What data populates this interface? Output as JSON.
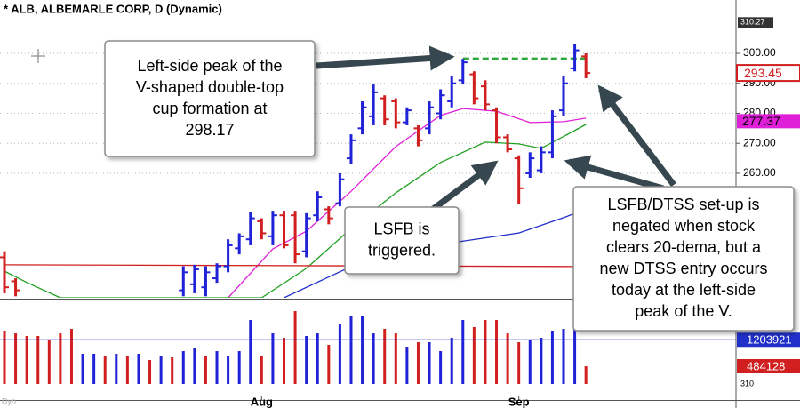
{
  "chart_data": {
    "type": "ohlc",
    "title": "* ALB, ALBEMARLE CORP, D (Dynamic)",
    "categories": [
      null,
      null,
      null,
      null,
      null,
      null,
      null,
      null,
      null,
      null,
      null,
      null,
      null,
      null,
      null,
      null,
      null,
      null,
      null,
      null,
      null,
      null,
      null,
      "Aug",
      null,
      null,
      null,
      null,
      null,
      null,
      null,
      null,
      null,
      null,
      null,
      null,
      null,
      null,
      null,
      null,
      null,
      null,
      null,
      null,
      null,
      null,
      "Sep",
      null,
      null,
      null,
      null,
      null,
      null
    ],
    "open": [
      232,
      224,
      null,
      null,
      null,
      null,
      null,
      null,
      null,
      null,
      null,
      null,
      null,
      null,
      null,
      null,
      221,
      223,
      222,
      225,
      229,
      235,
      238,
      244,
      239,
      246,
      246,
      234,
      246,
      248,
      250,
      265,
      275,
      279,
      285,
      284,
      277,
      275,
      275,
      280,
      284,
      291,
      293,
      289,
      281,
      272,
      265,
      260,
      261,
      267,
      281,
      295,
      299
    ],
    "high": [
      234,
      225,
      null,
      null,
      null,
      null,
      null,
      null,
      null,
      null,
      null,
      null,
      null,
      null,
      null,
      null,
      229,
      229.5,
      229,
      230,
      238,
      240,
      247,
      245,
      247.5,
      247.5,
      247.5,
      246.7,
      254,
      249,
      260,
      273,
      284,
      289.6,
      286,
      285,
      282,
      276,
      284,
      288,
      292.6,
      298.17,
      294,
      291,
      282,
      273,
      266,
      267,
      269,
      281,
      292.6,
      303,
      300
    ],
    "low": [
      220,
      219,
      null,
      null,
      null,
      null,
      null,
      null,
      null,
      null,
      null,
      null,
      null,
      null,
      null,
      null,
      219,
      220,
      219,
      223.5,
      227,
      233,
      236,
      238,
      236,
      235,
      230,
      232,
      244,
      243,
      249,
      263,
      273,
      276,
      276,
      275,
      276,
      269,
      273,
      278,
      282,
      289.6,
      283,
      281,
      270,
      267,
      249.6,
      258.5,
      260,
      265,
      279,
      294,
      291.7
    ],
    "close": [
      222,
      221,
      null,
      null,
      null,
      null,
      null,
      null,
      null,
      null,
      null,
      null,
      null,
      null,
      null,
      null,
      227,
      228,
      227,
      229,
      236,
      239,
      245,
      240,
      246,
      236,
      233,
      245,
      252,
      245,
      258,
      271,
      282,
      287,
      278,
      277,
      281,
      271,
      282,
      286,
      290,
      297,
      285,
      283,
      272,
      268,
      255,
      265,
      267,
      279,
      290,
      301,
      293.45
    ],
    "up_color": "#1f22d6",
    "down_color": "#d11f1f",
    "ylim": [
      218.5,
      311.85
    ],
    "yticks": [
      {
        "value": 300,
        "label": "300.00"
      },
      {
        "value": 290,
        "label": "290.00"
      },
      {
        "value": 280,
        "label": "280.00"
      },
      {
        "value": 270,
        "label": "270.00"
      },
      {
        "value": 260,
        "label": "260.00"
      }
    ],
    "grid": true,
    "max_price": 310.27,
    "last_price": 293.45,
    "moving_averages": [
      {
        "color": "#e020d8",
        "x": [
          20,
          24,
          27,
          31,
          35,
          39,
          41,
          44,
          47,
          50,
          52
        ],
        "values": [
          218.5,
          234.8,
          240.7,
          254,
          268.9,
          279.3,
          281.6,
          280.7,
          276.9,
          277.2,
          278.4
        ],
        "label_value": 277.37
      },
      {
        "color": "#1fa01f",
        "x": [
          0,
          2,
          5,
          23,
          27,
          31,
          35,
          39,
          43,
          46,
          48,
          52
        ],
        "values": [
          227.4,
          223.6,
          218.5,
          218.5,
          228.3,
          241.6,
          253.5,
          263.6,
          270.4,
          269.8,
          268.3,
          276.3
        ]
      },
      {
        "color": "#1f2fc8",
        "x": [
          25,
          31,
          39,
          46,
          50,
          52
        ],
        "values": [
          218.5,
          228.9,
          236.3,
          240.1,
          245.2,
          248.1
        ]
      },
      {
        "color": "#d02020",
        "x": [
          0,
          52
        ],
        "values": [
          229.5,
          228.9
        ]
      }
    ],
    "resistance": {
      "value": 298.17,
      "from": 41,
      "to": 52,
      "color": "#2ea83a"
    },
    "volume": {
      "values": [
        1452000,
        1379000,
        1307000,
        1307000,
        1210000,
        1379000,
        1500000,
        823000,
        823000,
        774000,
        823000,
        774000,
        823000,
        653000,
        774000,
        726000,
        895000,
        968000,
        774000,
        895000,
        774000,
        895000,
        1742000,
        774000,
        1379000,
        1258000,
        1984000,
        1307000,
        1379000,
        1065000,
        1621000,
        1863000,
        1863000,
        1379000,
        1500000,
        1379000,
        1016000,
        1137000,
        1137000,
        895000,
        1258000,
        1742000,
        1549000,
        1742000,
        1742000,
        1379000,
        1137000,
        1186000,
        1258000,
        1452000,
        1500000,
        1549000,
        484128
      ],
      "colors": [
        "#d11f1f",
        "#d11f1f",
        "#d11f1f",
        "#d11f1f",
        "#d11f1f",
        "#d11f1f",
        "#d11f1f",
        "#1f22d6",
        "#1f22d6",
        "#d11f1f",
        "#1f22d6",
        "#d11f1f",
        "#1f22d6",
        "#d11f1f",
        "#1f22d6",
        "#d11f1f",
        "#1f22d6",
        "#1f22d6",
        "#d11f1f",
        "#1f22d6",
        "#1f22d6",
        "#1f22d6",
        "#1f22d6",
        "#d11f1f",
        "#1f22d6",
        "#d11f1f",
        "#d11f1f",
        "#1f22d6",
        "#1f22d6",
        "#d11f1f",
        "#1f22d6",
        "#1f22d6",
        "#1f22d6",
        "#1f22d6",
        "#d11f1f",
        "#d11f1f",
        "#1f22d6",
        "#d11f1f",
        "#1f22d6",
        "#1f22d6",
        "#1f22d6",
        "#1f22d6",
        "#d11f1f",
        "#d11f1f",
        "#d11f1f",
        "#d11f1f",
        "#d11f1f",
        "#1f22d6",
        "#1f22d6",
        "#1f22d6",
        "#1f22d6",
        "#1f22d6",
        "#d11f1f"
      ],
      "ylim": [
        0,
        2275000
      ],
      "average": 1203921,
      "average_color": "#1f2fc8",
      "footer_label": "310"
    },
    "watermark": "Dyn",
    "annotations": [
      {
        "lines": [
          "Left-side peak of the",
          "V-shaped double-top",
          "cup formation at",
          "298.17"
        ]
      },
      {
        "lines": [
          "LSFB is",
          "triggered."
        ]
      },
      {
        "lines": [
          "LSFB/DTSS set-up is",
          "negated when stock",
          "clears 20-dema, but a",
          "new DTSS entry occurs",
          "today at the left-side",
          "peak of the V."
        ]
      }
    ]
  }
}
